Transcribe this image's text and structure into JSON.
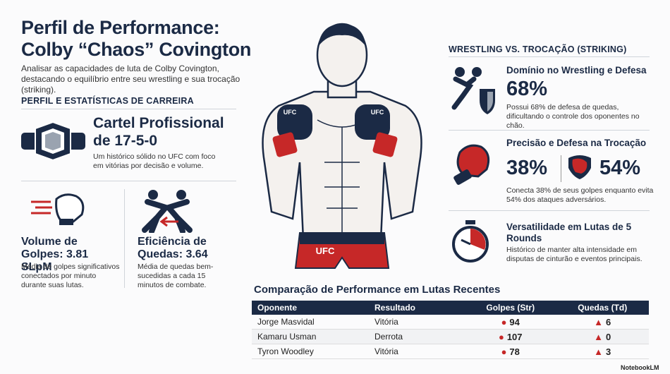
{
  "header": {
    "title_line1": "Perfil de Performance:",
    "title_line2": "Colby “Chaos” Covington",
    "subtitle": "Analisar as capacidades de luta de Colby Covington, destacando o equilíbrio entre seu wrestling e sua trocação (striking)."
  },
  "career": {
    "heading": "PERFIL E ESTATÍSTICAS DE CARREIRA",
    "record_title": "Cartel Profissional de 17-5-0",
    "record_text": "Um histórico sólido no UFC com foco em vitórias por decisão e volume.",
    "strikes_title": "Volume de Golpes: 3.81 SLpM",
    "strikes_text": "Média de golpes significativos conectados por minuto durante suas lutas.",
    "takedowns_title": "Eficiência de Quedas: 3.64",
    "takedowns_text": "Média de quedas bem-sucedidas a cada 15 minutos de combate."
  },
  "illustration": {
    "glove_label": "UFC",
    "shorts_label": "UFC"
  },
  "comparison": {
    "heading": "WRESTLING VS. TROCAÇÃO (STRIKING)",
    "items": [
      {
        "title": "Domínio no Wrestling e Defesa",
        "stats": [
          "68%"
        ],
        "text": "Possui 68% de defesa de quedas, dificultando o controle dos oponentes no chão."
      },
      {
        "title": "Precisão e Defesa na Trocação",
        "stats": [
          "38%",
          "54%"
        ],
        "text": "Conecta 38% de seus golpes enquanto evita 54% dos ataques adversários."
      },
      {
        "title": "Versatilidade em Lutas de 5 Rounds",
        "stats": [],
        "text": "Histórico de manter alta intensidade em disputas de cinturão e eventos principais."
      }
    ]
  },
  "table": {
    "title": "Comparação de Performance em Lutas Recentes",
    "headers": [
      "Oponente",
      "Resultado",
      "Golpes (Str)",
      "Quedas (Td)"
    ],
    "rows": [
      [
        "Jorge Masvidal",
        "Vitória",
        "94",
        "6"
      ],
      [
        "Kamaru Usman",
        "Derrota",
        "107",
        "0"
      ],
      [
        "Tyron Woodley",
        "Vitória",
        "78",
        "3"
      ]
    ]
  },
  "footer": {
    "brand": "NotebookLM"
  }
}
